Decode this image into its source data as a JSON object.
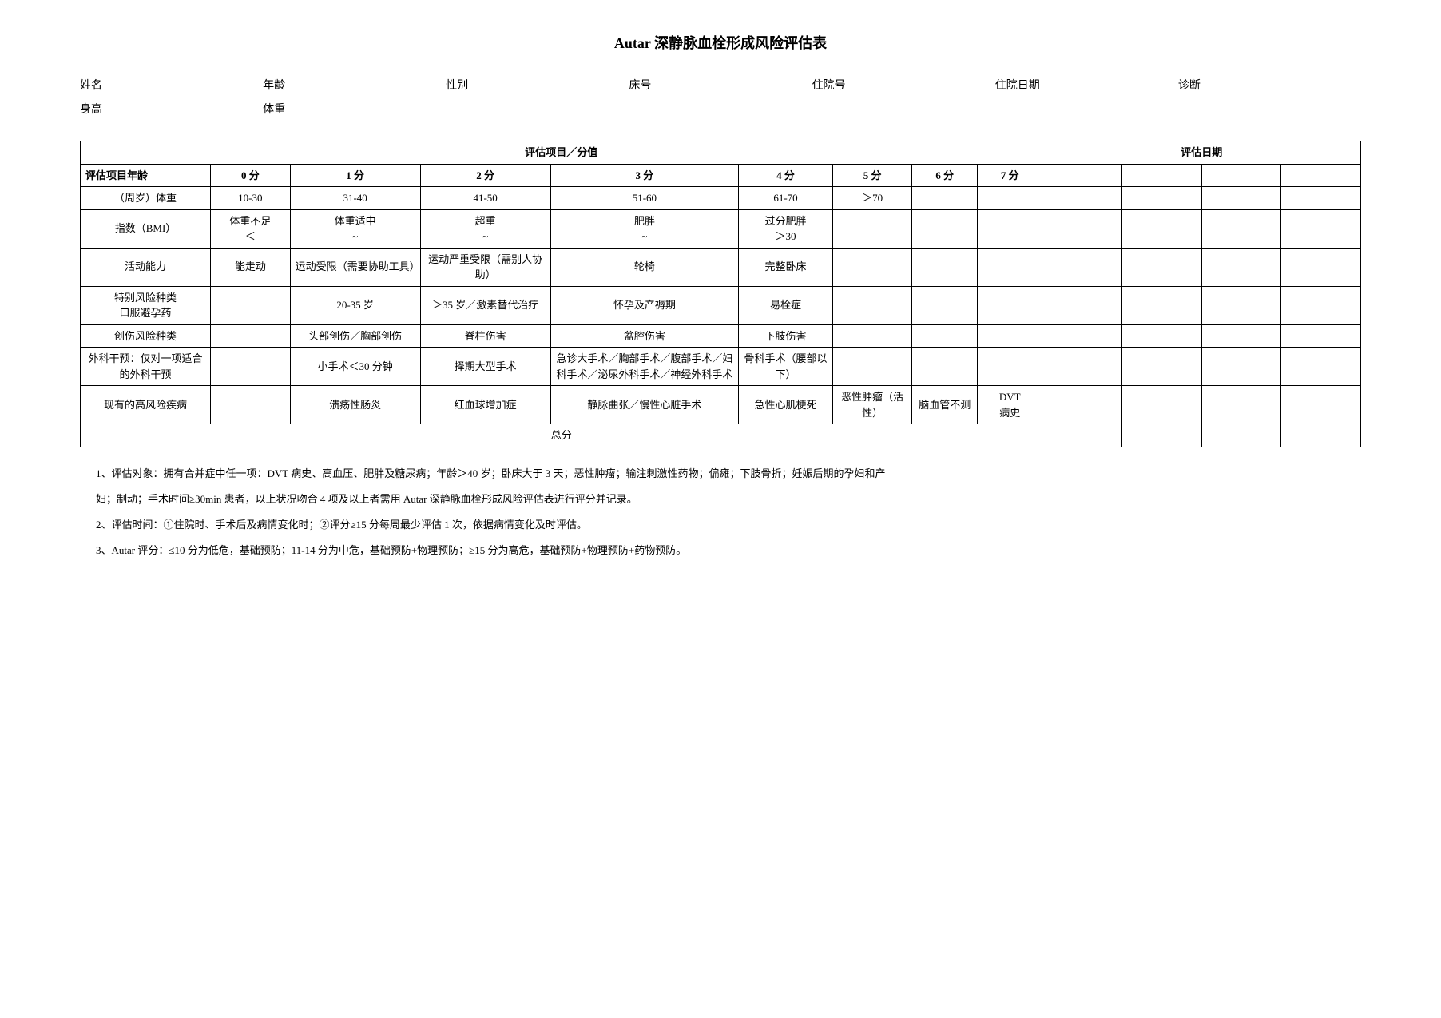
{
  "title": "Autar 深静脉血栓形成风险评估表",
  "patient_info": {
    "row1": {
      "name_label": "姓名",
      "age_label": "年龄",
      "gender_label": "性别",
      "bed_label": "床号",
      "admission_no_label": "住院号",
      "admission_date_label": "住院日期",
      "diagnosis_label": "诊断"
    },
    "row2": {
      "height_label": "身高",
      "weight_label": "体重"
    }
  },
  "table": {
    "header": {
      "items_scores": "评估项目／分值",
      "eval_date": "评估日期"
    },
    "score_headers": {
      "item_age": "评估项目年龄",
      "s0": "0 分",
      "s1": "1 分",
      "s2": "2 分",
      "s3": "3 分",
      "s4": "4 分",
      "s5": "5 分",
      "s6": "6 分",
      "s7": "7 分"
    },
    "rows": {
      "age_weight": {
        "label": "（周岁）体重",
        "c0": "10-30",
        "c1": "31-40",
        "c2": "41-50",
        "c3": "51-60",
        "c4": "61-70",
        "c5": "＞70"
      },
      "bmi": {
        "label": "指数（BMI）",
        "c0": "体重不足\n＜",
        "c1": "体重适中\n~",
        "c2": "超重\n~",
        "c3": "肥胖\n~",
        "c4": "过分肥胖\n＞30"
      },
      "activity": {
        "label": "活动能力",
        "c0": "能走动",
        "c1": "运动受限（需要协助工具）",
        "c2": "运动严重受限（需别人协助）",
        "c3": "轮椅",
        "c4": "完整卧床"
      },
      "special_risk": {
        "label": "特别风险种类\n口服避孕药",
        "c1": "20-35 岁",
        "c2": "＞35 岁／激素替代治疗",
        "c3": "怀孕及产褥期",
        "c4": "易栓症"
      },
      "trauma_risk": {
        "label": "创伤风险种类",
        "c1": "头部创伤／胸部创伤",
        "c2": "脊柱伤害",
        "c3": "盆腔伤害",
        "c4": "下肢伤害"
      },
      "surgery": {
        "label": "外科干预：仅对一项适合的外科干预",
        "c1": "小手术＜30 分钟",
        "c2": "择期大型手术",
        "c3": "急诊大手术／胸部手术／腹部手术／妇科手术／泌尿外科手术／神经外科手术",
        "c4": "骨科手术（腰部以下）"
      },
      "existing_disease": {
        "label": "现有的高风险疾病",
        "c1": "溃疡性肠炎",
        "c2": "红血球增加症",
        "c3": "静脉曲张／慢性心脏手术",
        "c4": "急性心肌梗死",
        "c5": "恶性肿瘤（活性）",
        "c6": "脑血管不测",
        "c7": "DVT\n病史"
      },
      "total": {
        "label": "总分"
      }
    }
  },
  "notes": {
    "n1": "1、评估对象：拥有合并症中任一项：DVT 病史、高血压、肥胖及糖尿病；年龄＞40 岁；卧床大于 3 天；恶性肿瘤；输注刺激性药物；偏瘫；下肢骨折；妊娠后期的孕妇和产",
    "n1b": "妇；制动；手术时间≥30min 患者，以上状况吻合 4 项及以上者需用 Autar 深静脉血栓形成风险评估表进行评分并记录。",
    "n2": "2、评估时间：①住院时、手术后及病情变化时；②评分≥15 分每周最少评估 1 次，依据病情变化及时评估。",
    "n3": "3、Autar 评分：≤10 分为低危，基础预防；11-14 分为中危，基础预防+物理预防；≥15 分为高危，基础预防+物理预防+药物预防。"
  }
}
